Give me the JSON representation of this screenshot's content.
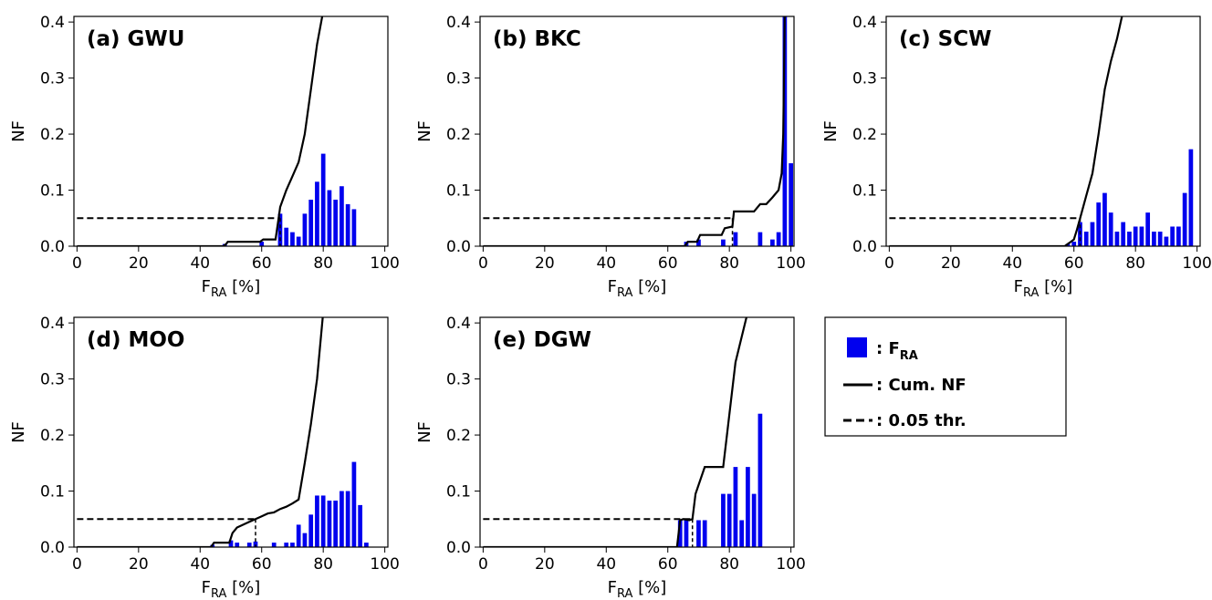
{
  "legend": {
    "items": [
      {
        "symbol": "bar",
        "label": ": F",
        "sub": "RA"
      },
      {
        "symbol": "solid",
        "label": ": Cum. NF",
        "sub": ""
      },
      {
        "symbol": "dashed",
        "label": ": 0.05 thr.",
        "sub": ""
      }
    ]
  },
  "colors": {
    "bar": "#0000ee",
    "line": "#000000"
  },
  "chart_data": [
    {
      "type": "bar",
      "title": "(a) GWU",
      "xlabel": "F",
      "xlabel_sub": "RA",
      "xlabel_unit": " [%]",
      "ylabel": "NF",
      "xlim": [
        -1,
        101
      ],
      "ylim": [
        0,
        0.41
      ],
      "xticks": [
        "0",
        "20",
        "40",
        "60",
        "80",
        "100"
      ],
      "yticks": [
        "0.0",
        "0.1",
        "0.2",
        "0.3",
        "0.4"
      ],
      "threshold": 0.05,
      "threshold_x_end": 66,
      "bars": {
        "x": [
          48,
          60,
          66,
          68,
          70,
          72,
          74,
          76,
          78,
          80,
          82,
          84,
          86,
          88,
          90
        ],
        "y": [
          0.004,
          0.008,
          0.058,
          0.033,
          0.025,
          0.017,
          0.058,
          0.083,
          0.115,
          0.165,
          0.1,
          0.083,
          0.107,
          0.075,
          0.066
        ]
      },
      "cum": {
        "x": [
          0,
          47.5,
          48.5,
          49,
          59.5,
          60.5,
          64.5,
          65.5,
          66,
          68,
          70,
          72,
          74,
          76,
          78,
          80
        ],
        "y": [
          0,
          0,
          0.004,
          0.008,
          0.008,
          0.012,
          0.012,
          0.05,
          0.07,
          0.1,
          0.125,
          0.15,
          0.2,
          0.28,
          0.36,
          0.42
        ]
      }
    },
    {
      "type": "bar",
      "title": "(b) BKC",
      "xlabel": "F",
      "xlabel_sub": "RA",
      "xlabel_unit": " [%]",
      "ylabel": "NF",
      "xlim": [
        -1,
        101
      ],
      "ylim": [
        0,
        0.41
      ],
      "xticks": [
        "0",
        "20",
        "40",
        "60",
        "80",
        "100"
      ],
      "yticks": [
        "0.0",
        "0.1",
        "0.2",
        "0.3",
        "0.4"
      ],
      "threshold": 0.05,
      "threshold_x_end": 81,
      "bars": {
        "x": [
          66,
          70,
          78,
          82,
          90,
          94,
          96,
          98,
          100
        ],
        "y": [
          0.008,
          0.012,
          0.012,
          0.025,
          0.025,
          0.012,
          0.025,
          0.42,
          0.148
        ]
      },
      "cum": {
        "x": [
          0,
          65.5,
          66.5,
          69.5,
          70.5,
          77.5,
          78.5,
          81,
          81.5,
          83,
          88,
          90,
          92,
          94,
          96,
          97,
          97.5,
          98,
          99
        ],
        "y": [
          0,
          0,
          0.008,
          0.008,
          0.02,
          0.02,
          0.032,
          0.035,
          0.062,
          0.062,
          0.062,
          0.075,
          0.075,
          0.087,
          0.1,
          0.13,
          0.2,
          0.42,
          0.42
        ]
      }
    },
    {
      "type": "bar",
      "title": "(c) SCW",
      "xlabel": "F",
      "xlabel_sub": "RA",
      "xlabel_unit": " [%]",
      "ylabel": "NF",
      "xlim": [
        -1,
        101
      ],
      "ylim": [
        0,
        0.41
      ],
      "xticks": [
        "0",
        "20",
        "40",
        "60",
        "80",
        "100"
      ],
      "yticks": [
        "0.0",
        "0.1",
        "0.2",
        "0.3",
        "0.4"
      ],
      "threshold": 0.05,
      "threshold_x_end": 62,
      "bars": {
        "x": [
          58,
          60,
          62,
          64,
          66,
          68,
          70,
          72,
          74,
          76,
          78,
          80,
          82,
          84,
          86,
          88,
          90,
          92,
          94,
          96,
          98
        ],
        "y": [
          0.004,
          0.008,
          0.043,
          0.026,
          0.043,
          0.078,
          0.095,
          0.06,
          0.026,
          0.043,
          0.026,
          0.035,
          0.035,
          0.06,
          0.026,
          0.026,
          0.017,
          0.035,
          0.035,
          0.095,
          0.173
        ]
      },
      "cum": {
        "x": [
          0,
          57,
          58,
          59,
          60,
          61,
          62,
          64,
          66,
          68,
          70,
          72,
          74,
          76
        ],
        "y": [
          0,
          0,
          0.004,
          0.008,
          0.012,
          0.03,
          0.05,
          0.09,
          0.13,
          0.2,
          0.28,
          0.33,
          0.37,
          0.42
        ]
      }
    },
    {
      "type": "bar",
      "title": "(d) MOO",
      "xlabel": "F",
      "xlabel_sub": "RA",
      "xlabel_unit": " [%]",
      "ylabel": "NF",
      "xlim": [
        -1,
        101
      ],
      "ylim": [
        0,
        0.41
      ],
      "xticks": [
        "0",
        "20",
        "40",
        "60",
        "80",
        "100"
      ],
      "yticks": [
        "0.0",
        "0.1",
        "0.2",
        "0.3",
        "0.4"
      ],
      "threshold": 0.05,
      "threshold_x_end": 58,
      "bars": {
        "x": [
          44,
          50,
          52,
          56,
          58,
          64,
          68,
          70,
          72,
          74,
          76,
          78,
          80,
          82,
          84,
          86,
          88,
          90,
          92,
          94
        ],
        "y": [
          0.004,
          0.012,
          0.008,
          0.008,
          0.01,
          0.008,
          0.008,
          0.008,
          0.04,
          0.025,
          0.058,
          0.092,
          0.092,
          0.083,
          0.083,
          0.1,
          0.1,
          0.152,
          0.075,
          0.008
        ]
      },
      "cum": {
        "x": [
          0,
          43.5,
          44.5,
          49.5,
          50.5,
          52,
          56,
          58,
          60,
          62,
          64,
          66,
          68,
          70,
          72,
          74,
          76,
          78,
          80
        ],
        "y": [
          0,
          0,
          0.008,
          0.008,
          0.025,
          0.035,
          0.045,
          0.05,
          0.055,
          0.06,
          0.062,
          0.068,
          0.072,
          0.078,
          0.085,
          0.15,
          0.22,
          0.3,
          0.42
        ]
      }
    },
    {
      "type": "bar",
      "title": "(e) DGW",
      "xlabel": "F",
      "xlabel_sub": "RA",
      "xlabel_unit": " [%]",
      "ylabel": "NF",
      "xlim": [
        -1,
        101
      ],
      "ylim": [
        0,
        0.41
      ],
      "xticks": [
        "0",
        "20",
        "40",
        "60",
        "80",
        "100"
      ],
      "yticks": [
        "0.0",
        "0.1",
        "0.2",
        "0.3",
        "0.4"
      ],
      "threshold": 0.05,
      "threshold_x_end": 68,
      "bars": {
        "x": [
          64,
          66,
          70,
          72,
          78,
          80,
          82,
          84,
          86,
          88,
          90
        ],
        "y": [
          0.048,
          0.048,
          0.048,
          0.048,
          0.095,
          0.095,
          0.143,
          0.048,
          0.143,
          0.095,
          0.238
        ]
      },
      "cum": {
        "x": [
          0,
          63,
          64,
          65,
          67,
          68,
          69,
          72,
          75,
          78,
          79,
          82,
          86
        ],
        "y": [
          0,
          0,
          0.048,
          0.05,
          0.048,
          0.05,
          0.095,
          0.143,
          0.143,
          0.143,
          0.19,
          0.33,
          0.42
        ]
      }
    }
  ]
}
